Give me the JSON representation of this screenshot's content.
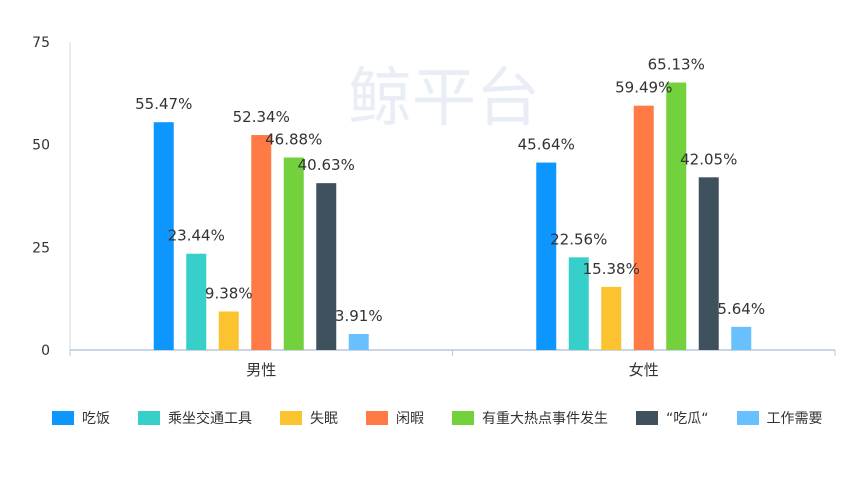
{
  "watermark": "鲸平台",
  "chart_data": {
    "type": "bar",
    "title": "",
    "xlabel": "",
    "ylabel": "",
    "categories": [
      "男性",
      "女性"
    ],
    "ylim": [
      0,
      75
    ],
    "yticks": [
      0,
      25,
      50,
      75
    ],
    "grid": false,
    "legend_position": "bottom",
    "series": [
      {
        "name": "吃饭",
        "color": "#0e96ff",
        "values": [
          55.47,
          45.64
        ],
        "labels": [
          "55.47%",
          "45.64%"
        ]
      },
      {
        "name": "乘坐交通工具",
        "color": "#36cfc9",
        "values": [
          23.44,
          22.56
        ],
        "labels": [
          "23.44%",
          "22.56%"
        ]
      },
      {
        "name": "失眠",
        "color": "#fcc330",
        "values": [
          9.38,
          15.38
        ],
        "labels": [
          "9.38%",
          "15.38%"
        ]
      },
      {
        "name": "闲暇",
        "color": "#ff7a45",
        "values": [
          52.34,
          59.49
        ],
        "labels": [
          "52.34%",
          "59.49%"
        ]
      },
      {
        "name": "有重大热点事件发生",
        "color": "#73d13d",
        "values": [
          46.88,
          65.13
        ],
        "labels": [
          "46.88%",
          "65.13%"
        ]
      },
      {
        "name": "“吃瓜“",
        "color": "#40515e",
        "values": [
          40.63,
          42.05
        ],
        "labels": [
          "40.63%",
          "42.05%"
        ]
      },
      {
        "name": "工作需要",
        "color": "#69c0ff",
        "values": [
          3.91,
          5.64
        ],
        "labels": [
          "3.91%",
          "5.64%"
        ]
      }
    ]
  }
}
